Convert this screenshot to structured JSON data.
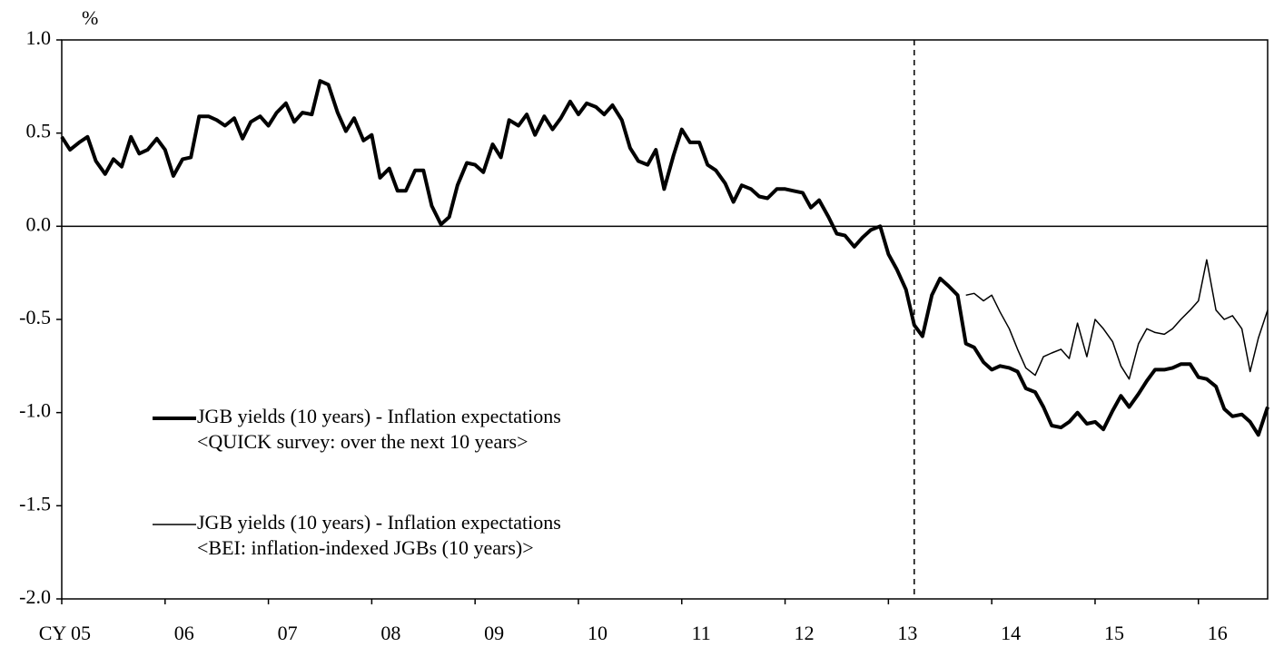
{
  "chart_data": {
    "type": "line",
    "y_unit": "%",
    "xlim": [
      2005,
      2016.67
    ],
    "ylim": [
      -2.0,
      1.0
    ],
    "yticks": [
      {
        "value": 1.0,
        "label": "1.0"
      },
      {
        "value": 0.5,
        "label": "0.5"
      },
      {
        "value": 0.0,
        "label": "0.0"
      },
      {
        "value": -0.5,
        "label": "-0.5"
      },
      {
        "value": -1.0,
        "label": "-1.0"
      },
      {
        "value": -1.5,
        "label": "-1.5"
      },
      {
        "value": -2.0,
        "label": "-2.0"
      }
    ],
    "xticks": [
      {
        "value": 2005,
        "label": "CY 05"
      },
      {
        "value": 2006,
        "label": "06"
      },
      {
        "value": 2007,
        "label": "07"
      },
      {
        "value": 2008,
        "label": "08"
      },
      {
        "value": 2009,
        "label": "09"
      },
      {
        "value": 2010,
        "label": "10"
      },
      {
        "value": 2011,
        "label": "11"
      },
      {
        "value": 2012,
        "label": "12"
      },
      {
        "value": 2013,
        "label": "13"
      },
      {
        "value": 2014,
        "label": "14"
      },
      {
        "value": 2015,
        "label": "15"
      },
      {
        "value": 2016,
        "label": "16"
      }
    ],
    "vline": 2013.25,
    "grid": false,
    "series": [
      {
        "name": "JGB yields (10 years) - Inflation expectations",
        "note": "<QUICK survey: over the next 10 years>",
        "color": "#000000",
        "width": 4,
        "x": [
          2005,
          2005.08,
          2005.17,
          2005.25,
          2005.33,
          2005.42,
          2005.5,
          2005.58,
          2005.67,
          2005.75,
          2005.83,
          2005.92,
          2006,
          2006.08,
          2006.17,
          2006.25,
          2006.33,
          2006.42,
          2006.5,
          2006.58,
          2006.67,
          2006.75,
          2006.83,
          2006.92,
          2007,
          2007.08,
          2007.17,
          2007.25,
          2007.33,
          2007.42,
          2007.5,
          2007.58,
          2007.67,
          2007.75,
          2007.83,
          2007.92,
          2008,
          2008.08,
          2008.17,
          2008.25,
          2008.33,
          2008.42,
          2008.5,
          2008.58,
          2008.67,
          2008.75,
          2008.83,
          2008.92,
          2009,
          2009.08,
          2009.17,
          2009.25,
          2009.33,
          2009.42,
          2009.5,
          2009.58,
          2009.67,
          2009.75,
          2009.83,
          2009.92,
          2010,
          2010.08,
          2010.17,
          2010.25,
          2010.33,
          2010.42,
          2010.5,
          2010.58,
          2010.67,
          2010.75,
          2010.83,
          2010.92,
          2011,
          2011.08,
          2011.17,
          2011.25,
          2011.33,
          2011.42,
          2011.5,
          2011.58,
          2011.67,
          2011.75,
          2011.83,
          2011.92,
          2012,
          2012.08,
          2012.17,
          2012.25,
          2012.33,
          2012.42,
          2012.5,
          2012.58,
          2012.67,
          2012.75,
          2012.83,
          2012.92,
          2013,
          2013.08,
          2013.17,
          2013.25,
          2013.33,
          2013.42,
          2013.5,
          2013.58,
          2013.67,
          2013.75,
          2013.83,
          2013.92,
          2014,
          2014.08,
          2014.17,
          2014.25,
          2014.33,
          2014.42,
          2014.5,
          2014.58,
          2014.67,
          2014.75,
          2014.83,
          2014.92,
          2015,
          2015.08,
          2015.17,
          2015.25,
          2015.33,
          2015.42,
          2015.5,
          2015.58,
          2015.67,
          2015.75,
          2015.83,
          2015.92,
          2016,
          2016.08,
          2016.17,
          2016.25,
          2016.33,
          2016.42,
          2016.5,
          2016.58,
          2016.67
        ],
        "values": [
          0.48,
          0.41,
          0.45,
          0.48,
          0.35,
          0.28,
          0.36,
          0.32,
          0.48,
          0.39,
          0.41,
          0.47,
          0.41,
          0.27,
          0.36,
          0.37,
          0.59,
          0.59,
          0.57,
          0.54,
          0.58,
          0.47,
          0.56,
          0.59,
          0.54,
          0.61,
          0.66,
          0.56,
          0.61,
          0.6,
          0.78,
          0.76,
          0.61,
          0.51,
          0.58,
          0.46,
          0.49,
          0.26,
          0.31,
          0.19,
          0.19,
          0.3,
          0.3,
          0.11,
          0.01,
          0.05,
          0.22,
          0.34,
          0.33,
          0.29,
          0.44,
          0.37,
          0.57,
          0.54,
          0.6,
          0.49,
          0.59,
          0.52,
          0.58,
          0.67,
          0.6,
          0.66,
          0.64,
          0.6,
          0.65,
          0.57,
          0.42,
          0.35,
          0.33,
          0.41,
          0.2,
          0.38,
          0.52,
          0.45,
          0.45,
          0.33,
          0.3,
          0.23,
          0.13,
          0.22,
          0.2,
          0.16,
          0.15,
          0.2,
          0.2,
          0.19,
          0.18,
          0.1,
          0.14,
          0.05,
          -0.04,
          -0.05,
          -0.11,
          -0.06,
          -0.02,
          0.0,
          -0.15,
          -0.23,
          -0.34,
          -0.53,
          -0.59,
          -0.37,
          -0.28,
          -0.32,
          -0.37,
          -0.63,
          -0.65,
          -0.73,
          -0.77,
          -0.75,
          -0.76,
          -0.78,
          -0.87,
          -0.89,
          -0.97,
          -1.07,
          -1.08,
          -1.05,
          -1.0,
          -1.06,
          -1.05,
          -1.09,
          -0.99,
          -0.91,
          -0.97,
          -0.9,
          -0.83,
          -0.77,
          -0.77,
          -0.76,
          -0.74,
          -0.74,
          -0.81,
          -0.82,
          -0.86,
          -0.98,
          -1.02,
          -1.01,
          -1.05,
          -1.12,
          -0.97
        ]
      },
      {
        "name": "JGB yields (10 years) - Inflation expectations",
        "note": "<BEI: inflation-indexed JGBs (10 years)>",
        "color": "#000000",
        "width": 1.5,
        "x": [
          2013.75,
          2013.83,
          2013.92,
          2014,
          2014.08,
          2014.17,
          2014.25,
          2014.33,
          2014.42,
          2014.5,
          2014.58,
          2014.67,
          2014.75,
          2014.83,
          2014.92,
          2015,
          2015.08,
          2015.17,
          2015.25,
          2015.33,
          2015.42,
          2015.5,
          2015.58,
          2015.67,
          2015.75,
          2015.83,
          2015.92,
          2016,
          2016.08,
          2016.17,
          2016.25,
          2016.33,
          2016.42,
          2016.5,
          2016.58,
          2016.67
        ],
        "values": [
          -0.37,
          -0.36,
          -0.4,
          -0.37,
          -0.46,
          -0.55,
          -0.66,
          -0.76,
          -0.8,
          -0.7,
          -0.68,
          -0.66,
          -0.71,
          -0.52,
          -0.7,
          -0.5,
          -0.55,
          -0.62,
          -0.75,
          -0.82,
          -0.63,
          -0.55,
          -0.57,
          -0.58,
          -0.55,
          -0.5,
          -0.45,
          -0.4,
          -0.18,
          -0.45,
          -0.5,
          -0.48,
          -0.55,
          -0.78,
          -0.6,
          -0.45
        ]
      }
    ]
  }
}
